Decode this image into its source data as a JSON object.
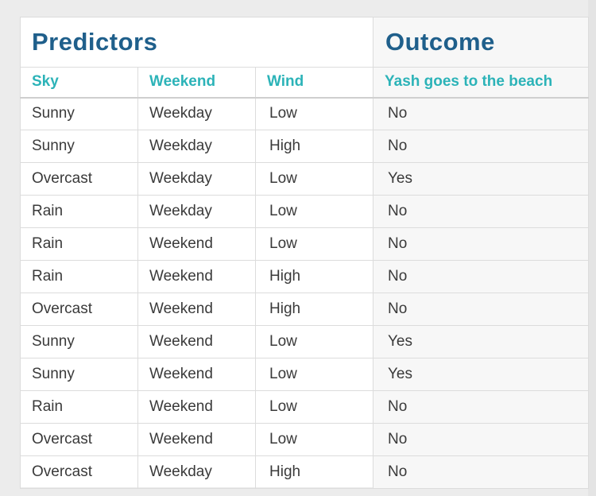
{
  "table": {
    "groups": {
      "predictors": "Predictors",
      "outcome": "Outcome"
    },
    "columns": [
      "Sky",
      "Weekend",
      "Wind",
      "Yash goes to the beach"
    ],
    "rows": [
      [
        "Sunny",
        "Weekday",
        "Low",
        "No"
      ],
      [
        "Sunny",
        "Weekday",
        "High",
        "No"
      ],
      [
        "Overcast",
        "Weekday",
        "Low",
        "Yes"
      ],
      [
        "Rain",
        "Weekday",
        "Low",
        "No"
      ],
      [
        "Rain",
        "Weekend",
        "Low",
        "No"
      ],
      [
        "Rain",
        "Weekend",
        "High",
        "No"
      ],
      [
        "Overcast",
        "Weekend",
        "High",
        "No"
      ],
      [
        "Sunny",
        "Weekend",
        "Low",
        "Yes"
      ],
      [
        "Sunny",
        "Weekend",
        "Low",
        "Yes"
      ],
      [
        "Rain",
        "Weekend",
        "Low",
        "No"
      ],
      [
        "Overcast",
        "Weekend",
        "Low",
        "No"
      ],
      [
        "Overcast",
        "Weekday",
        "High",
        "No"
      ]
    ]
  },
  "colors": {
    "group_heading": "#1f5f8b",
    "column_heading": "#2cb3b8",
    "cell_text": "#3a3a3a",
    "outcome_shade": "#f7f7f7"
  }
}
